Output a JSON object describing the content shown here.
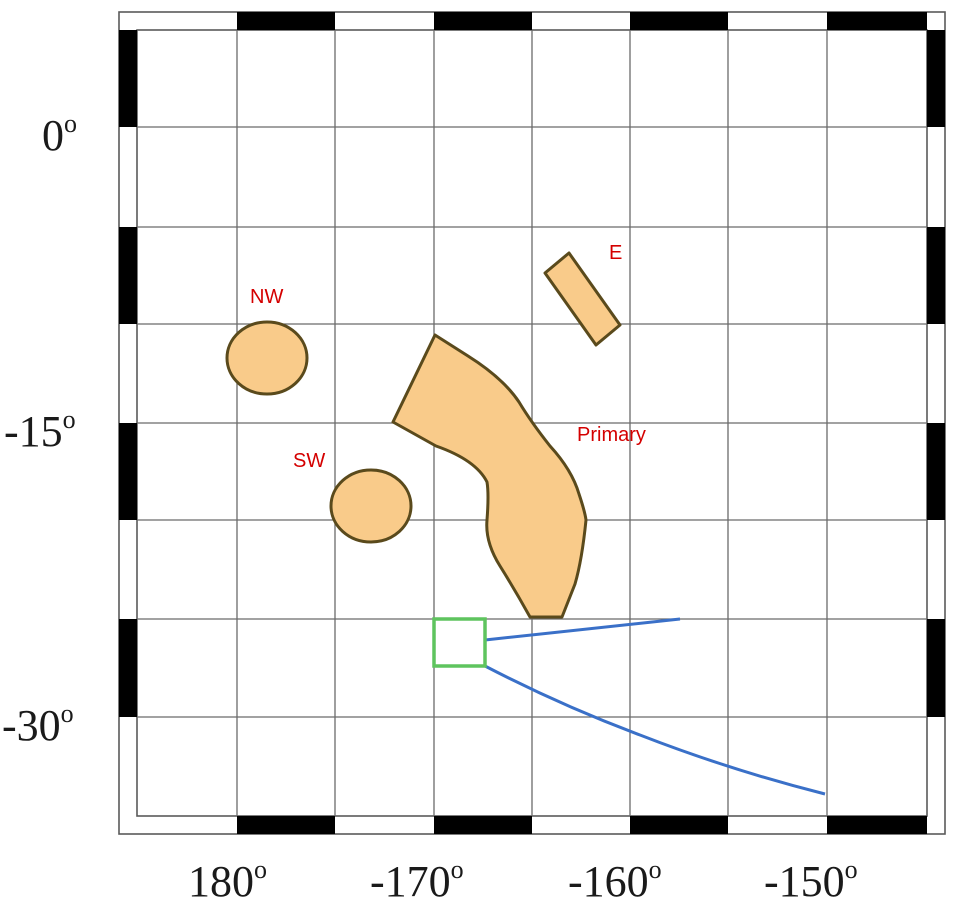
{
  "map": {
    "longitude_labels": [
      {
        "value": "180",
        "unit": "o"
      },
      {
        "value": "-170",
        "unit": "o"
      },
      {
        "value": "-160",
        "unit": "o"
      },
      {
        "value": "-150",
        "unit": "o"
      }
    ],
    "latitude_labels": [
      {
        "value": "0",
        "unit": "o"
      },
      {
        "value": "-15",
        "unit": "o"
      },
      {
        "value": "-30",
        "unit": "o"
      }
    ],
    "regions": [
      {
        "id": "NW",
        "label": "NW",
        "color": "#f9cb8a"
      },
      {
        "id": "SW",
        "label": "SW",
        "color": "#f9cb8a"
      },
      {
        "id": "E",
        "label": "E",
        "color": "#f9cb8a"
      },
      {
        "id": "Primary",
        "label": "Primary",
        "color": "#f9cb8a"
      }
    ],
    "colors": {
      "region_fill": "#f9cb8a",
      "region_outline": "#5a4a1c",
      "label_text": "#d40000",
      "inset_box": "#5ec45e",
      "projection_lines": "#3a70c8",
      "grid": "#6b6b6b",
      "frame_ticks": "#000000"
    }
  }
}
